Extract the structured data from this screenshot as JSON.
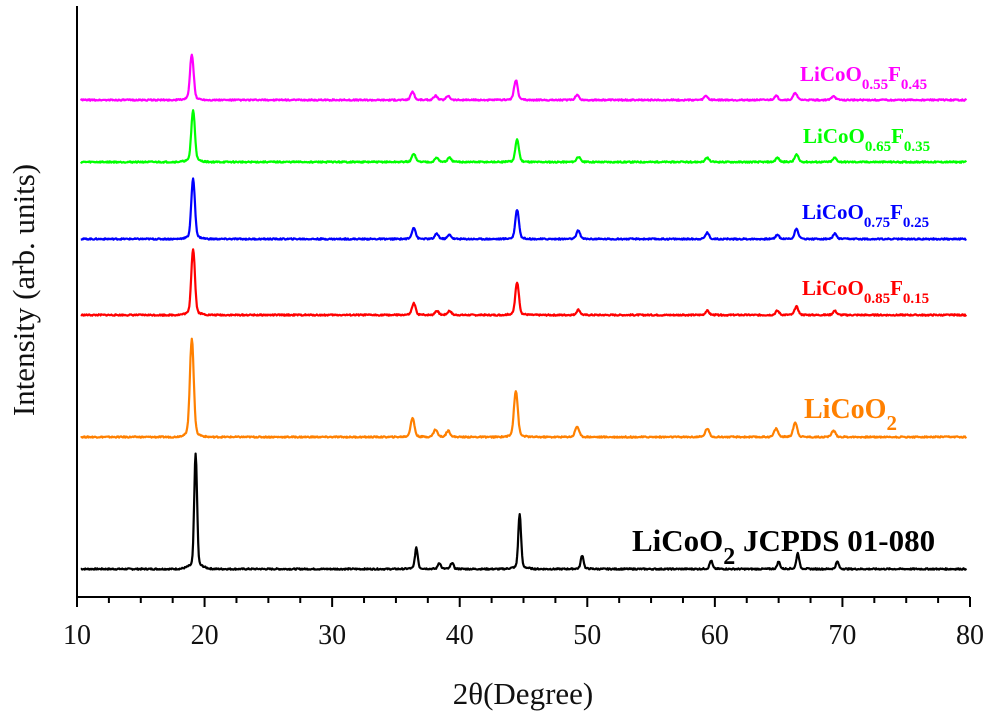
{
  "chart_data": {
    "type": "line",
    "title": "",
    "xlabel": "2θ(Degree)",
    "ylabel": "Intensity (arb. units)",
    "xlim": [
      10,
      80
    ],
    "y_ticks_shown": false,
    "grid": false,
    "x_ticks": [
      "10",
      "20",
      "30",
      "40",
      "50",
      "60",
      "70",
      "80"
    ],
    "series": [
      {
        "name": "LiCoO2 JCPDS 01-080",
        "label_parts": [
          {
            "t": "LiCoO"
          },
          {
            "t": "2",
            "sub": true
          },
          {
            "t": " JCPDS 01-080"
          }
        ],
        "color": "#000000",
        "offset": 0,
        "peaks": [
          [
            19.3,
            110
          ],
          [
            36.6,
            20
          ],
          [
            38.4,
            6
          ],
          [
            39.4,
            6
          ],
          [
            44.7,
            52
          ],
          [
            49.6,
            13
          ],
          [
            59.7,
            8
          ],
          [
            65.0,
            7
          ],
          [
            66.5,
            15
          ],
          [
            69.6,
            7
          ]
        ]
      },
      {
        "name": "LiCoO2",
        "label_parts": [
          {
            "t": "LiCoO"
          },
          {
            "t": "2",
            "sub": true
          }
        ],
        "color": "#ff8000",
        "offset": 1,
        "peaks": [
          [
            19.0,
            93
          ],
          [
            36.3,
            18
          ],
          [
            38.1,
            7
          ],
          [
            39.1,
            6
          ],
          [
            44.4,
            44
          ],
          [
            49.2,
            10
          ],
          [
            59.4,
            8
          ],
          [
            64.8,
            8
          ],
          [
            66.3,
            14
          ],
          [
            69.3,
            6
          ]
        ]
      },
      {
        "name": "LiCoO0.85F0.15",
        "label_parts": [
          {
            "t": "LiCoO"
          },
          {
            "t": "0.85",
            "sub": true
          },
          {
            "t": "F"
          },
          {
            "t": "0.15",
            "sub": true
          }
        ],
        "color": "#ff0000",
        "offset": 2,
        "peaks": [
          [
            19.1,
            63
          ],
          [
            36.4,
            11
          ],
          [
            38.2,
            4
          ],
          [
            39.2,
            4
          ],
          [
            44.5,
            31
          ],
          [
            49.3,
            5
          ],
          [
            59.4,
            4
          ],
          [
            64.9,
            4
          ],
          [
            66.4,
            8
          ],
          [
            69.4,
            4
          ]
        ]
      },
      {
        "name": "LiCoO0.75F0.25",
        "label_parts": [
          {
            "t": "LiCoO"
          },
          {
            "t": "0.75",
            "sub": true
          },
          {
            "t": "F"
          },
          {
            "t": "0.25",
            "sub": true
          }
        ],
        "color": "#0000ff",
        "offset": 3,
        "peaks": [
          [
            19.1,
            57
          ],
          [
            36.4,
            11
          ],
          [
            38.2,
            5
          ],
          [
            39.2,
            4
          ],
          [
            44.5,
            28
          ],
          [
            49.3,
            8
          ],
          [
            59.4,
            6
          ],
          [
            64.9,
            4
          ],
          [
            66.4,
            10
          ],
          [
            69.4,
            5
          ]
        ]
      },
      {
        "name": "LiCoO0.65F0.35",
        "label_parts": [
          {
            "t": "LiCoO"
          },
          {
            "t": "0.65",
            "sub": true
          },
          {
            "t": "F"
          },
          {
            "t": "0.35",
            "sub": true
          }
        ],
        "color": "#00ff00",
        "offset": 4,
        "peaks": [
          [
            19.1,
            49
          ],
          [
            36.4,
            8
          ],
          [
            38.2,
            4
          ],
          [
            39.2,
            4
          ],
          [
            44.5,
            21
          ],
          [
            49.3,
            5
          ],
          [
            59.4,
            4
          ],
          [
            64.9,
            4
          ],
          [
            66.4,
            7
          ],
          [
            69.4,
            4
          ]
        ]
      },
      {
        "name": "LiCoO0.55F0.45",
        "label_parts": [
          {
            "t": "LiCoO"
          },
          {
            "t": "0.55",
            "sub": true
          },
          {
            "t": "F"
          },
          {
            "t": "0.45",
            "sub": true
          }
        ],
        "color": "#ff00ff",
        "offset": 5,
        "peaks": [
          [
            19.0,
            43
          ],
          [
            36.3,
            8
          ],
          [
            38.1,
            4
          ],
          [
            39.1,
            4
          ],
          [
            44.4,
            19
          ],
          [
            49.2,
            5
          ],
          [
            59.3,
            4
          ],
          [
            64.8,
            4
          ],
          [
            66.3,
            7
          ],
          [
            69.3,
            4
          ]
        ]
      }
    ]
  }
}
